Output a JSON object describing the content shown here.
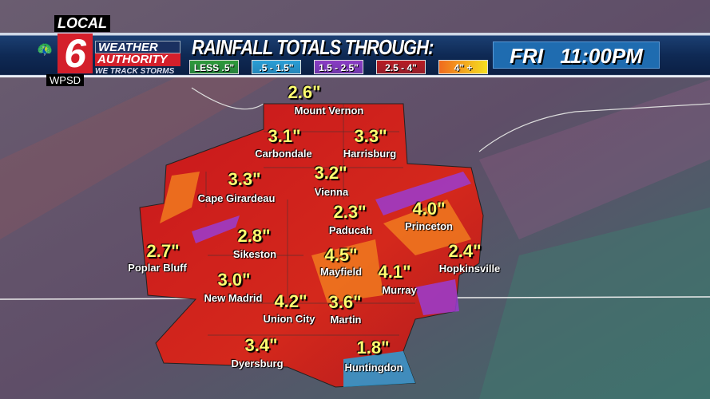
{
  "branding": {
    "local": "LOCAL",
    "channel": "6",
    "station": "WPSD",
    "line1": "WEATHER",
    "line2": "AUTHORITY",
    "tagline": "WE TRACK STORMS"
  },
  "header": {
    "title": "RAINFALL TOTALS THROUGH:",
    "time": "FRI 11:00PM"
  },
  "legend": [
    {
      "label": "LESS .5\"",
      "color": "#2e9a3a"
    },
    {
      "label": ".5 - 1.5\"",
      "color": "#2a9fd6"
    },
    {
      "label": "1.5 - 2.5\"",
      "color": "#8a3cc4"
    },
    {
      "label": "2.5 - 4\"",
      "color": "#b81c22"
    },
    {
      "label": "4\" +",
      "color": "#f39020"
    }
  ],
  "locations": [
    {
      "name": "Mount Vernon",
      "value": "2.6\""
    },
    {
      "name": "Carbondale",
      "value": "3.1\""
    },
    {
      "name": "Harrisburg",
      "value": "3.3\""
    },
    {
      "name": "Cape Girardeau",
      "value": "3.3\""
    },
    {
      "name": "Vienna",
      "value": "3.2\""
    },
    {
      "name": "Paducah",
      "value": "2.3\""
    },
    {
      "name": "Princeton",
      "value": "4.0\""
    },
    {
      "name": "Poplar Bluff",
      "value": "2.7\""
    },
    {
      "name": "Sikeston",
      "value": "2.8\""
    },
    {
      "name": "Mayfield",
      "value": "4.5\""
    },
    {
      "name": "Murray",
      "value": "4.1\""
    },
    {
      "name": "Hopkinsville",
      "value": "2.4\""
    },
    {
      "name": "New Madrid",
      "value": "3.0\""
    },
    {
      "name": "Union City",
      "value": "4.2\""
    },
    {
      "name": "Martin",
      "value": "3.6\""
    },
    {
      "name": "Dyersburg",
      "value": "3.4\""
    },
    {
      "name": "Huntingdon",
      "value": "1.8\""
    }
  ]
}
